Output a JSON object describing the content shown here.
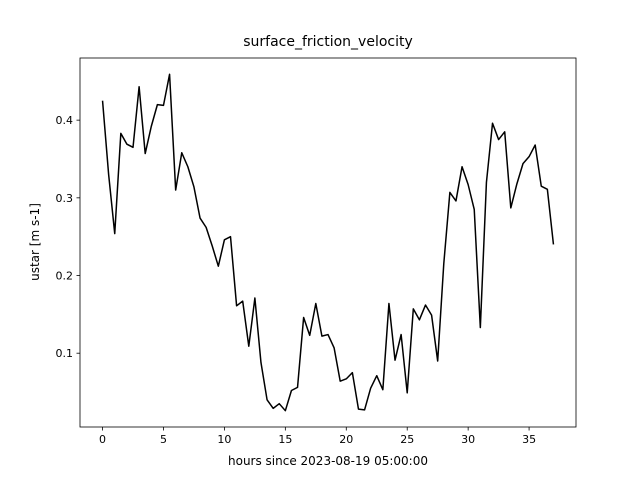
{
  "chart_data": {
    "type": "line",
    "title": "surface_friction_velocity",
    "xlabel": "hours since 2023-08-19 05:00:00",
    "ylabel": "ustar [m s-1]",
    "xlim": [
      -1.85,
      38.85
    ],
    "ylim": [
      0.005,
      0.48
    ],
    "xticks": [
      0,
      5,
      10,
      15,
      20,
      25,
      30,
      35
    ],
    "yticks": [
      0.1,
      0.2,
      0.3,
      0.4
    ],
    "xtick_labels": [
      "0",
      "5",
      "10",
      "15",
      "20",
      "25",
      "30",
      "35"
    ],
    "ytick_labels": [
      "0.1",
      "0.2",
      "0.3",
      "0.4"
    ],
    "grid": false,
    "line_color": "#000000",
    "series": [
      {
        "x": [
          0,
          0.5,
          1,
          1.5,
          2,
          2.5,
          3,
          3.5,
          4,
          4.5,
          5,
          5.5,
          6,
          6.5,
          7,
          7.5,
          8,
          8.5,
          9,
          9.5,
          10,
          10.5,
          11,
          11.5,
          12,
          12.5,
          13,
          13.5,
          14,
          14.5,
          15,
          15.5,
          16,
          16.5,
          17,
          17.5,
          18,
          18.5,
          19,
          19.5,
          20,
          20.5,
          21,
          21.5,
          22,
          22.5,
          23,
          23.5,
          24,
          24.5,
          25,
          25.5,
          26,
          26.5,
          27,
          27.5,
          28,
          28.5,
          29,
          29.5,
          30,
          30.5,
          31,
          31.5,
          32,
          32.5,
          33,
          33.5,
          34,
          34.5,
          35,
          35.5,
          36,
          36.5,
          37
        ],
        "values": [
          0.425,
          0.33,
          0.254,
          0.383,
          0.369,
          0.365,
          0.443,
          0.357,
          0.392,
          0.42,
          0.419,
          0.459,
          0.31,
          0.358,
          0.34,
          0.314,
          0.274,
          0.262,
          0.238,
          0.212,
          0.246,
          0.25,
          0.161,
          0.167,
          0.109,
          0.171,
          0.088,
          0.04,
          0.029,
          0.035,
          0.026,
          0.052,
          0.056,
          0.146,
          0.123,
          0.164,
          0.122,
          0.124,
          0.107,
          0.064,
          0.067,
          0.075,
          0.028,
          0.027,
          0.055,
          0.071,
          0.053,
          0.164,
          0.091,
          0.124,
          0.049,
          0.157,
          0.143,
          0.162,
          0.149,
          0.09,
          0.215,
          0.307,
          0.296,
          0.34,
          0.317,
          0.285,
          0.133,
          0.32,
          0.396,
          0.375,
          0.385,
          0.287,
          0.318,
          0.344,
          0.353,
          0.368,
          0.315,
          0.311,
          0.24
        ]
      }
    ]
  }
}
